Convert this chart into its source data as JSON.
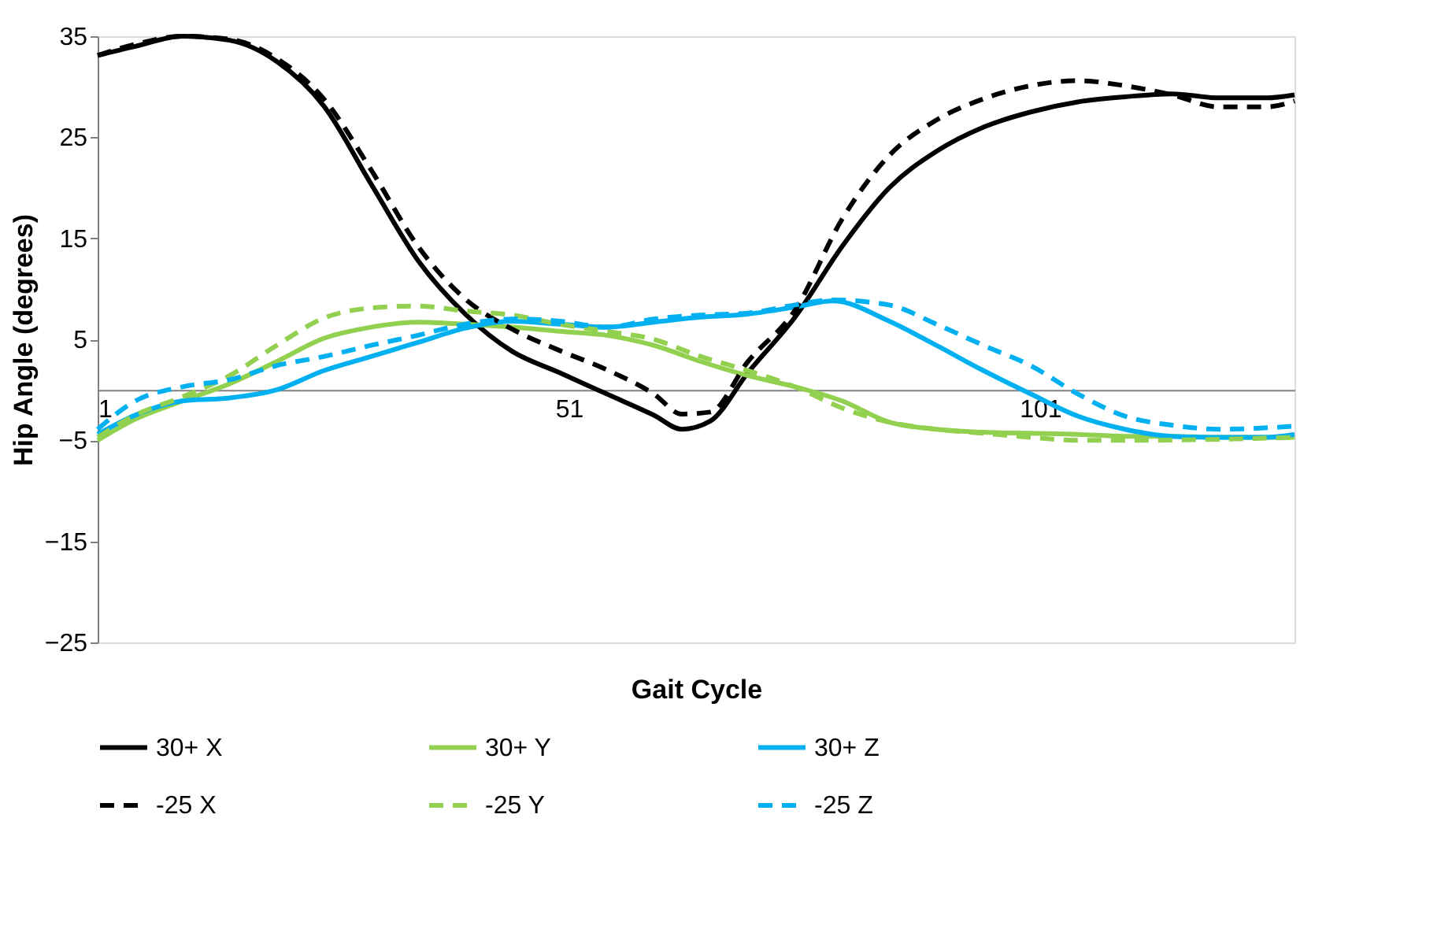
{
  "chart_data": {
    "type": "line",
    "xlabel": "Gait Cycle",
    "ylabel": "Hip Angle (degrees)",
    "xlim": [
      1,
      128
    ],
    "xticks": [
      1,
      51,
      101
    ],
    "ylim": [
      -25,
      35
    ],
    "yticks": [
      -25,
      -15,
      -5,
      5,
      15,
      25,
      35
    ],
    "grid": false,
    "legend": "bottom",
    "marker": "none",
    "series": [
      {
        "name": "30+  X",
        "color": "#000000",
        "line_style": "solid",
        "x": [
          1,
          5,
          10,
          15,
          20,
          25,
          30,
          35,
          40,
          45,
          50,
          55,
          60,
          63,
          66,
          70,
          75,
          80,
          85,
          90,
          95,
          100,
          105,
          110,
          115,
          120,
          125,
          128
        ],
        "values": [
          33.1,
          34.0,
          35.0,
          34.6,
          32.5,
          28.1,
          20.4,
          12.8,
          7.5,
          3.8,
          1.7,
          -0.4,
          -2.5,
          -3.9,
          -3.1,
          1.7,
          7.2,
          14.2,
          20,
          23.6,
          26,
          27.5,
          28.5,
          29,
          29.3,
          28.9,
          28.9,
          29.2
        ]
      },
      {
        "name": "30+  Y",
        "color": "#92d050",
        "line_style": "solid",
        "x": [
          1,
          5,
          10,
          15,
          20,
          25,
          30,
          35,
          40,
          45,
          50,
          55,
          60,
          65,
          70,
          75,
          80,
          85,
          90,
          95,
          100,
          105,
          110,
          115,
          120,
          125,
          128
        ],
        "values": [
          -5,
          -2.9,
          -1.1,
          0.6,
          2.8,
          5.1,
          6.2,
          6.7,
          6.5,
          6.2,
          5.8,
          5.4,
          4.4,
          2.8,
          1.4,
          0.3,
          -1.1,
          -3.2,
          -3.9,
          -4.2,
          -4.3,
          -4.4,
          -4.6,
          -4.6,
          -4.7,
          -4.7,
          -4.7
        ]
      },
      {
        "name": "30+  Z",
        "color": "#00b0f0",
        "line_style": "solid",
        "x": [
          1,
          5,
          10,
          15,
          20,
          25,
          30,
          35,
          40,
          45,
          50,
          55,
          60,
          65,
          70,
          75,
          79,
          85,
          90,
          95,
          100,
          105,
          110,
          115,
          120,
          125,
          128
        ],
        "values": [
          -4.4,
          -2.5,
          -1.1,
          -0.8,
          0,
          1.9,
          3.3,
          4.7,
          6.1,
          6.8,
          6.5,
          6.2,
          6.7,
          7.2,
          7.5,
          8.2,
          8.8,
          6.8,
          4.4,
          1.9,
          -0.4,
          -2.6,
          -3.9,
          -4.6,
          -4.7,
          -4.7,
          -4.4
        ]
      },
      {
        "name": "-25 X",
        "color": "#000000",
        "line_style": "dashed",
        "x": [
          1,
          5,
          10,
          15,
          20,
          25,
          30,
          35,
          40,
          45,
          50,
          55,
          60,
          63,
          66,
          70,
          75,
          80,
          85,
          90,
          95,
          100,
          105,
          110,
          115,
          120,
          125,
          128
        ],
        "values": [
          33.1,
          34.2,
          35.0,
          34.7,
          32.8,
          28.8,
          21.8,
          14.2,
          9,
          6,
          3.9,
          2,
          -0.4,
          -2.4,
          -2.2,
          2.8,
          7.9,
          16.9,
          23.2,
          26.7,
          28.8,
          30.1,
          30.6,
          30.1,
          29.2,
          28,
          28,
          28.6
        ]
      },
      {
        "name": "-25 Y",
        "color": "#92d050",
        "line_style": "dashed",
        "x": [
          1,
          5,
          10,
          15,
          20,
          25,
          30,
          35,
          40,
          45,
          50,
          55,
          60,
          65,
          70,
          75,
          80,
          85,
          90,
          95,
          100,
          105,
          110,
          120,
          128
        ],
        "values": [
          -4.7,
          -2.5,
          -0.7,
          1.4,
          4.4,
          7.1,
          8.1,
          8.3,
          7.8,
          7.4,
          6.5,
          5.8,
          5,
          3.3,
          1.9,
          0.3,
          -1.8,
          -3.2,
          -3.9,
          -4.3,
          -4.7,
          -5,
          -5,
          -4.9,
          -4.7
        ]
      },
      {
        "name": "-25 Z",
        "color": "#00b0f0",
        "line_style": "dashed",
        "x": [
          1,
          5,
          10,
          15,
          20,
          25,
          30,
          35,
          40,
          45,
          50,
          55,
          60,
          65,
          70,
          75,
          79,
          85,
          90,
          95,
          100,
          105,
          110,
          115,
          120,
          128
        ],
        "values": [
          -3.9,
          -1.1,
          0.3,
          1,
          2.4,
          3.3,
          4.4,
          5.4,
          6.5,
          7,
          6.8,
          6.2,
          7,
          7.4,
          7.6,
          8.4,
          8.9,
          8.4,
          6.5,
          4.4,
          2.4,
          -0.4,
          -2.6,
          -3.5,
          -3.9,
          -3.6
        ]
      }
    ]
  }
}
